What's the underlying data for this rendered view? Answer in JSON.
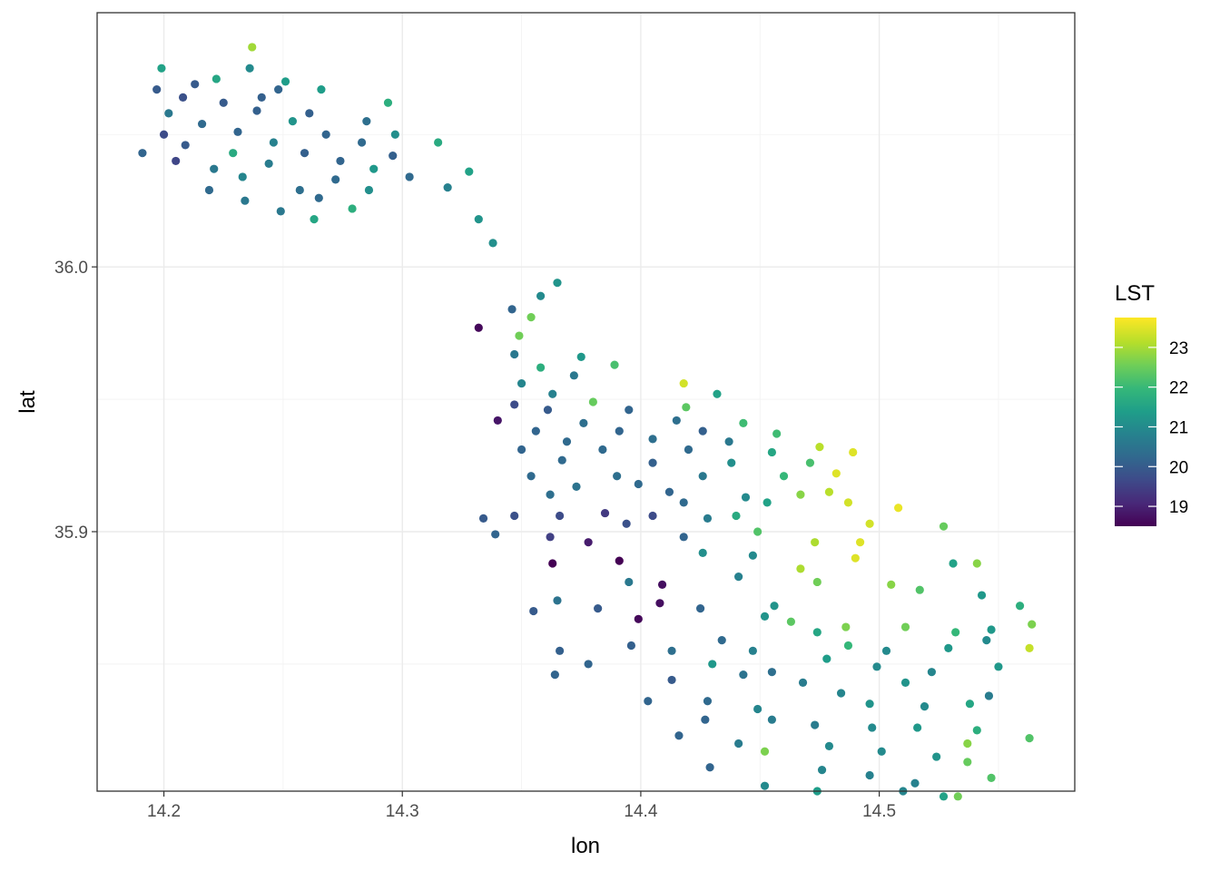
{
  "chart_data": {
    "type": "scatter",
    "title": "",
    "xlabel": "lon",
    "ylabel": "lat",
    "xlim": [
      14.172,
      14.582
    ],
    "ylim": [
      35.802,
      36.096
    ],
    "x_ticks": [
      14.2,
      14.3,
      14.4,
      14.5
    ],
    "x_tick_labels": [
      "14.2",
      "14.3",
      "14.4",
      "14.5"
    ],
    "y_ticks": [
      35.9,
      36.0
    ],
    "y_tick_labels": [
      "35.9",
      "36.0"
    ],
    "grid": true,
    "legend": {
      "title": "LST",
      "position": "right",
      "colormap": "viridis",
      "min": 18.5,
      "max": 23.75,
      "ticks": [
        19,
        20,
        21,
        22,
        23
      ],
      "tick_labels": [
        "19",
        "20",
        "21",
        "22",
        "23"
      ]
    },
    "colormap_stops": [
      "#440154",
      "#482878",
      "#3e4a89",
      "#31688e",
      "#26828e",
      "#1f9e89",
      "#35b779",
      "#6ece58",
      "#b5de2b",
      "#fde725"
    ],
    "points": [
      [
        14.237,
        36.083,
        23.0
      ],
      [
        14.199,
        36.075,
        21.5
      ],
      [
        14.222,
        36.071,
        21.6
      ],
      [
        14.236,
        36.075,
        21.0
      ],
      [
        14.213,
        36.069,
        20.0
      ],
      [
        14.248,
        36.067,
        20.2
      ],
      [
        14.251,
        36.07,
        21.4
      ],
      [
        14.266,
        36.067,
        21.4
      ],
      [
        14.197,
        36.067,
        20.0
      ],
      [
        14.208,
        36.064,
        19.8
      ],
      [
        14.225,
        36.062,
        20.0
      ],
      [
        14.241,
        36.064,
        20.1
      ],
      [
        14.294,
        36.062,
        21.8
      ],
      [
        14.202,
        36.058,
        20.6
      ],
      [
        14.261,
        36.058,
        20.1
      ],
      [
        14.216,
        36.054,
        20.3
      ],
      [
        14.239,
        36.059,
        20.1
      ],
      [
        14.254,
        36.055,
        21.2
      ],
      [
        14.285,
        36.055,
        20.4
      ],
      [
        14.2,
        36.05,
        19.7
      ],
      [
        14.231,
        36.051,
        20.2
      ],
      [
        14.268,
        36.05,
        20.2
      ],
      [
        14.297,
        36.05,
        21.1
      ],
      [
        14.315,
        36.047,
        21.7
      ],
      [
        14.209,
        36.046,
        20.0
      ],
      [
        14.246,
        36.047,
        20.8
      ],
      [
        14.283,
        36.047,
        20.3
      ],
      [
        14.191,
        36.043,
        20.2
      ],
      [
        14.229,
        36.043,
        21.7
      ],
      [
        14.259,
        36.043,
        20.1
      ],
      [
        14.296,
        36.042,
        20.1
      ],
      [
        14.205,
        36.04,
        19.6
      ],
      [
        14.244,
        36.039,
        20.7
      ],
      [
        14.274,
        36.04,
        20.2
      ],
      [
        14.221,
        36.037,
        20.6
      ],
      [
        14.288,
        36.037,
        21.3
      ],
      [
        14.328,
        36.036,
        21.5
      ],
      [
        14.233,
        36.034,
        20.9
      ],
      [
        14.303,
        36.034,
        20.3
      ],
      [
        14.272,
        36.033,
        20.3
      ],
      [
        14.219,
        36.029,
        20.3
      ],
      [
        14.257,
        36.029,
        20.4
      ],
      [
        14.286,
        36.029,
        21.1
      ],
      [
        14.319,
        36.03,
        20.8
      ],
      [
        14.265,
        36.026,
        20.3
      ],
      [
        14.234,
        36.025,
        20.6
      ],
      [
        14.279,
        36.022,
        21.8
      ],
      [
        14.249,
        36.021,
        20.6
      ],
      [
        14.263,
        36.018,
        21.6
      ],
      [
        14.332,
        36.018,
        21.2
      ],
      [
        14.338,
        36.009,
        21.1
      ],
      [
        14.365,
        35.994,
        21.2
      ],
      [
        14.358,
        35.989,
        21.0
      ],
      [
        14.346,
        35.984,
        20.2
      ],
      [
        14.354,
        35.981,
        22.6
      ],
      [
        14.332,
        35.977,
        18.6
      ],
      [
        14.349,
        35.974,
        22.6
      ],
      [
        14.347,
        35.967,
        20.6
      ],
      [
        14.375,
        35.966,
        21.3
      ],
      [
        14.389,
        35.963,
        22.2
      ],
      [
        14.358,
        35.962,
        21.8
      ],
      [
        14.372,
        35.959,
        20.6
      ],
      [
        14.35,
        35.956,
        20.9
      ],
      [
        14.418,
        35.956,
        23.4
      ],
      [
        14.363,
        35.952,
        20.8
      ],
      [
        14.432,
        35.952,
        21.5
      ],
      [
        14.347,
        35.948,
        19.7
      ],
      [
        14.38,
        35.949,
        22.5
      ],
      [
        14.419,
        35.947,
        22.4
      ],
      [
        14.361,
        35.946,
        20.0
      ],
      [
        14.395,
        35.946,
        20.2
      ],
      [
        14.34,
        35.942,
        18.8
      ],
      [
        14.415,
        35.942,
        20.4
      ],
      [
        14.376,
        35.941,
        20.4
      ],
      [
        14.443,
        35.941,
        22.1
      ],
      [
        14.356,
        35.938,
        20.2
      ],
      [
        14.391,
        35.938,
        20.2
      ],
      [
        14.426,
        35.938,
        20.1
      ],
      [
        14.405,
        35.935,
        20.4
      ],
      [
        14.457,
        35.937,
        22.1
      ],
      [
        14.369,
        35.934,
        20.3
      ],
      [
        14.437,
        35.934,
        20.6
      ],
      [
        14.475,
        35.932,
        23.2
      ],
      [
        14.35,
        35.931,
        20.2
      ],
      [
        14.384,
        35.931,
        20.3
      ],
      [
        14.42,
        35.931,
        20.3
      ],
      [
        14.489,
        35.93,
        23.5
      ],
      [
        14.455,
        35.93,
        21.6
      ],
      [
        14.405,
        35.926,
        20.1
      ],
      [
        14.367,
        35.927,
        20.3
      ],
      [
        14.438,
        35.926,
        21.1
      ],
      [
        14.471,
        35.926,
        22.2
      ],
      [
        14.482,
        35.922,
        23.5
      ],
      [
        14.354,
        35.921,
        20.3
      ],
      [
        14.39,
        35.921,
        20.4
      ],
      [
        14.426,
        35.921,
        20.6
      ],
      [
        14.46,
        35.921,
        22.0
      ],
      [
        14.399,
        35.918,
        20.3
      ],
      [
        14.373,
        35.917,
        20.5
      ],
      [
        14.412,
        35.915,
        20.2
      ],
      [
        14.479,
        35.915,
        23.2
      ],
      [
        14.362,
        35.914,
        20.4
      ],
      [
        14.444,
        35.913,
        21.0
      ],
      [
        14.467,
        35.914,
        22.8
      ],
      [
        14.418,
        35.911,
        20.3
      ],
      [
        14.453,
        35.911,
        21.5
      ],
      [
        14.487,
        35.911,
        23.4
      ],
      [
        14.334,
        35.905,
        20.0
      ],
      [
        14.347,
        35.906,
        19.8
      ],
      [
        14.405,
        35.906,
        19.7
      ],
      [
        14.366,
        35.906,
        19.7
      ],
      [
        14.385,
        35.907,
        19.4
      ],
      [
        14.44,
        35.906,
        21.7
      ],
      [
        14.508,
        35.909,
        23.6
      ],
      [
        14.394,
        35.903,
        19.8
      ],
      [
        14.496,
        35.903,
        23.4
      ],
      [
        14.492,
        35.896,
        23.5
      ],
      [
        14.527,
        35.902,
        22.5
      ],
      [
        14.428,
        35.905,
        20.7
      ],
      [
        14.449,
        35.9,
        22.3
      ],
      [
        14.339,
        35.899,
        20.2
      ],
      [
        14.418,
        35.898,
        20.2
      ],
      [
        14.362,
        35.898,
        19.5
      ],
      [
        14.378,
        35.896,
        18.9
      ],
      [
        14.473,
        35.896,
        23.1
      ],
      [
        14.426,
        35.892,
        21.1
      ],
      [
        14.447,
        35.891,
        21.0
      ],
      [
        14.391,
        35.889,
        18.4
      ],
      [
        14.363,
        35.888,
        18.4
      ],
      [
        14.49,
        35.89,
        23.5
      ],
      [
        14.531,
        35.888,
        21.5
      ],
      [
        14.467,
        35.886,
        23.1
      ],
      [
        14.541,
        35.888,
        22.8
      ],
      [
        14.441,
        35.883,
        20.8
      ],
      [
        14.395,
        35.881,
        20.6
      ],
      [
        14.409,
        35.88,
        18.7
      ],
      [
        14.474,
        35.881,
        22.6
      ],
      [
        14.505,
        35.88,
        22.8
      ],
      [
        14.517,
        35.878,
        22.3
      ],
      [
        14.543,
        35.876,
        21.3
      ],
      [
        14.559,
        35.872,
        21.8
      ],
      [
        14.425,
        35.871,
        20.2
      ],
      [
        14.456,
        35.872,
        21.2
      ],
      [
        14.382,
        35.871,
        20.0
      ],
      [
        14.365,
        35.874,
        20.5
      ],
      [
        14.355,
        35.87,
        20.0
      ],
      [
        14.399,
        35.867,
        18.6
      ],
      [
        14.452,
        35.868,
        21.2
      ],
      [
        14.408,
        35.873,
        18.7
      ],
      [
        14.463,
        35.866,
        22.4
      ],
      [
        14.486,
        35.864,
        22.7
      ],
      [
        14.511,
        35.864,
        22.6
      ],
      [
        14.532,
        35.862,
        22.0
      ],
      [
        14.547,
        35.863,
        21.3
      ],
      [
        14.564,
        35.865,
        22.7
      ],
      [
        14.487,
        35.857,
        22.0
      ],
      [
        14.474,
        35.862,
        21.6
      ],
      [
        14.545,
        35.859,
        21.0
      ],
      [
        14.563,
        35.856,
        23.3
      ],
      [
        14.434,
        35.859,
        20.3
      ],
      [
        14.396,
        35.857,
        20.1
      ],
      [
        14.366,
        35.855,
        20.1
      ],
      [
        14.413,
        35.855,
        20.4
      ],
      [
        14.447,
        35.855,
        20.8
      ],
      [
        14.503,
        35.855,
        21.0
      ],
      [
        14.529,
        35.856,
        21.3
      ],
      [
        14.478,
        35.852,
        21.4
      ],
      [
        14.499,
        35.849,
        21.0
      ],
      [
        14.378,
        35.85,
        20.2
      ],
      [
        14.43,
        35.85,
        21.3
      ],
      [
        14.455,
        35.847,
        20.4
      ],
      [
        14.522,
        35.847,
        20.9
      ],
      [
        14.55,
        35.849,
        21.3
      ],
      [
        14.364,
        35.846,
        20.2
      ],
      [
        14.413,
        35.844,
        20.0
      ],
      [
        14.443,
        35.846,
        20.5
      ],
      [
        14.511,
        35.843,
        21.2
      ],
      [
        14.468,
        35.843,
        20.7
      ],
      [
        14.484,
        35.839,
        20.9
      ],
      [
        14.546,
        35.838,
        20.7
      ],
      [
        14.403,
        35.836,
        20.2
      ],
      [
        14.428,
        35.836,
        20.3
      ],
      [
        14.449,
        35.833,
        20.9
      ],
      [
        14.496,
        35.835,
        21.2
      ],
      [
        14.519,
        35.834,
        21.0
      ],
      [
        14.538,
        35.835,
        21.6
      ],
      [
        14.427,
        35.829,
        20.2
      ],
      [
        14.455,
        35.829,
        20.7
      ],
      [
        14.473,
        35.827,
        20.7
      ],
      [
        14.497,
        35.826,
        21.0
      ],
      [
        14.516,
        35.826,
        21.3
      ],
      [
        14.541,
        35.825,
        21.8
      ],
      [
        14.537,
        35.82,
        22.8
      ],
      [
        14.563,
        35.822,
        22.3
      ],
      [
        14.416,
        35.823,
        20.2
      ],
      [
        14.441,
        35.82,
        20.7
      ],
      [
        14.452,
        35.817,
        22.7
      ],
      [
        14.479,
        35.819,
        21.0
      ],
      [
        14.501,
        35.817,
        21.0
      ],
      [
        14.524,
        35.815,
        21.2
      ],
      [
        14.429,
        35.811,
        20.2
      ],
      [
        14.452,
        35.804,
        21.0
      ],
      [
        14.476,
        35.81,
        20.9
      ],
      [
        14.496,
        35.808,
        20.8
      ],
      [
        14.515,
        35.805,
        20.8
      ],
      [
        14.547,
        35.807,
        22.3
      ],
      [
        14.474,
        35.802,
        21.4
      ],
      [
        14.51,
        35.802,
        20.9
      ],
      [
        14.533,
        35.8,
        22.6
      ],
      [
        14.527,
        35.8,
        21.5
      ],
      [
        14.537,
        35.813,
        22.5
      ]
    ]
  }
}
